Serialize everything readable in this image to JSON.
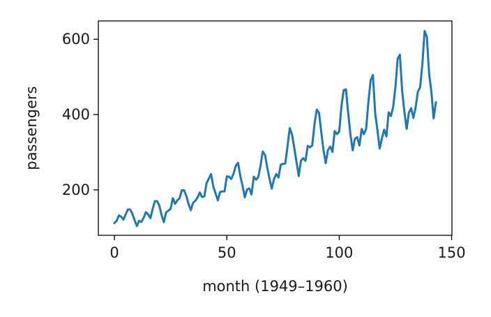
{
  "chart_data": {
    "type": "line",
    "title": "",
    "xlabel": "month (1949–1960)",
    "ylabel": "passengers",
    "xlim": [
      -7.15,
      150.15
    ],
    "ylim": [
      79.4,
      648.6
    ],
    "xticks": [
      0,
      50,
      100,
      150
    ],
    "yticks": [
      200,
      400,
      600
    ],
    "grid": false,
    "legend": "none",
    "colors": {
      "line": "#1f77b4",
      "axes": "#000000"
    },
    "series": [
      {
        "values": [
          112,
          118,
          132,
          129,
          121,
          135,
          148,
          148,
          136,
          119,
          104,
          118,
          115,
          126,
          141,
          135,
          125,
          149,
          170,
          170,
          158,
          133,
          114,
          140,
          145,
          150,
          178,
          163,
          172,
          178,
          199,
          199,
          184,
          162,
          146,
          166,
          171,
          180,
          193,
          181,
          183,
          218,
          230,
          242,
          209,
          191,
          172,
          194,
          196,
          196,
          236,
          235,
          229,
          243,
          264,
          272,
          237,
          211,
          180,
          201,
          204,
          188,
          235,
          227,
          234,
          264,
          302,
          293,
          259,
          229,
          203,
          229,
          242,
          233,
          267,
          269,
          270,
          315,
          364,
          347,
          312,
          274,
          237,
          278,
          284,
          277,
          317,
          313,
          318,
          374,
          413,
          405,
          355,
          306,
          271,
          306,
          315,
          301,
          356,
          348,
          355,
          422,
          465,
          467,
          404,
          347,
          305,
          336,
          340,
          318,
          362,
          348,
          363,
          435,
          491,
          505,
          404,
          359,
          310,
          337,
          360,
          342,
          406,
          396,
          420,
          472,
          548,
          559,
          463,
          407,
          362,
          405,
          417,
          391,
          419,
          461,
          472,
          535,
          622,
          606,
          508,
          461,
          390,
          432
        ]
      }
    ]
  }
}
